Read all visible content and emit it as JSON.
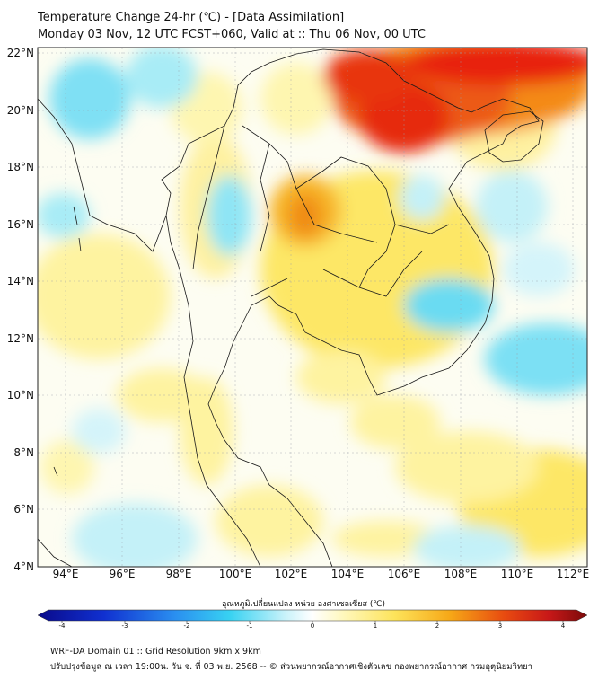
{
  "title": {
    "line1": "Temperature Change 24-hr (℃) - [Data Assimilation]",
    "line2": "Monday 03 Nov, 12 UTC FCST+060, Valid at :: Thu 06 Nov, 00 UTC"
  },
  "map": {
    "lat_labels": [
      "22°N",
      "20°N",
      "18°N",
      "16°N",
      "14°N",
      "12°N",
      "10°N",
      "8°N",
      "6°N",
      "4°N"
    ],
    "lon_labels": [
      "94°E",
      "96°E",
      "98°E",
      "100°E",
      "102°E",
      "104°E",
      "106°E",
      "108°E",
      "110°E",
      "112°E"
    ],
    "lat_range": [
      4,
      22.2
    ],
    "lon_range": [
      93,
      112.5
    ]
  },
  "colorbar": {
    "title": "อุณหภูมิเปลี่ยนแปลง หน่วย องศาเซลเซียส (℃)",
    "ticks": [
      "-4",
      "-3",
      "-2",
      "-1",
      "0",
      "1",
      "2",
      "3",
      "4"
    ],
    "min": -4,
    "max": 4
  },
  "footer": {
    "line1": "WRF-DA Domain 01 :: Grid Resolution 9km x 9km",
    "line2": "ปรับปรุงข้อมูล ณ เวลา 19:00น. วัน จ. ที่ 03 พ.ย. 2568 -- © ส่วนพยากรณ์อากาศเชิงตัวเลข กองพยากรณ์อากาศ กรมอุตุนิยมวิทยา"
  },
  "colors": {
    "ocean_base": "#fdfdf4",
    "warm_strong": "#e61e0f",
    "warm_mid": "#f49a18",
    "warm_light": "#fde96a",
    "cool_light": "#a8ecf6",
    "cool_mid": "#55d5f0",
    "coast_line": "#1a1a1a"
  }
}
